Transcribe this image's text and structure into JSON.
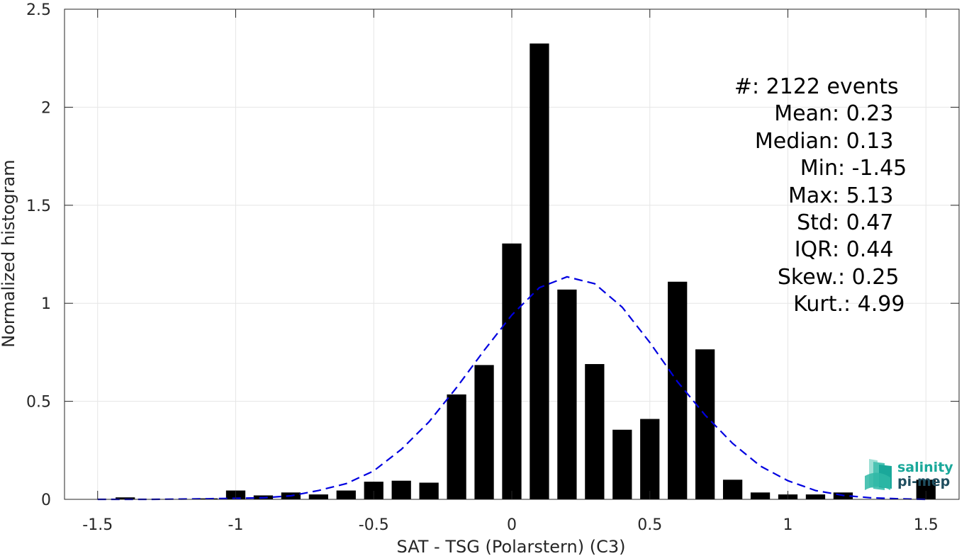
{
  "chart_data": {
    "type": "bar",
    "xlabel": "SAT - TSG (Polarstern) (C3)",
    "ylabel": "Normalized histogram",
    "xlim": [
      -1.62,
      1.62
    ],
    "ylim": [
      0,
      2.5
    ],
    "grid": true,
    "x_ticks": [
      -1.5,
      -1,
      -0.5,
      0,
      0.5,
      1,
      1.5
    ],
    "x_tick_labels": [
      "-1.5",
      "-1",
      "-0.5",
      "0",
      "0.5",
      "1",
      "1.5"
    ],
    "y_ticks": [
      0,
      0.5,
      1,
      1.5,
      2,
      2.5
    ],
    "y_tick_labels": [
      "0",
      "0.5",
      "1",
      "1.5",
      "2",
      "2.5"
    ],
    "bar_width": 0.07,
    "bar_color": "#000000",
    "bins": {
      "x": [
        -1.4,
        -1.3,
        -1.2,
        -1.1,
        -1.0,
        -0.9,
        -0.8,
        -0.7,
        -0.6,
        -0.5,
        -0.4,
        -0.3,
        -0.2,
        -0.1,
        0.0,
        0.1,
        0.2,
        0.3,
        0.4,
        0.5,
        0.6,
        0.7,
        0.8,
        0.9,
        1.0,
        1.1,
        1.2,
        1.3,
        1.4,
        1.5
      ],
      "values": [
        0.01,
        0.0,
        0.0,
        0.005,
        0.045,
        0.02,
        0.035,
        0.025,
        0.045,
        0.09,
        0.095,
        0.085,
        0.535,
        0.685,
        1.305,
        2.325,
        1.07,
        0.69,
        0.355,
        0.41,
        1.11,
        0.765,
        0.1,
        0.035,
        0.025,
        0.025,
        0.035,
        0.0,
        0.0,
        0.1
      ]
    },
    "fit_curve": {
      "type": "dashed-line",
      "color": "#0000e0",
      "x": [
        -1.5,
        -1.3,
        -1.1,
        -0.9,
        -0.8,
        -0.7,
        -0.6,
        -0.5,
        -0.4,
        -0.3,
        -0.2,
        -0.1,
        0.0,
        0.1,
        0.2,
        0.3,
        0.4,
        0.5,
        0.6,
        0.7,
        0.8,
        0.9,
        1.0,
        1.1,
        1.2,
        1.3,
        1.4,
        1.5
      ],
      "y": [
        0.0,
        0.0,
        0.003,
        0.008,
        0.018,
        0.045,
        0.08,
        0.145,
        0.255,
        0.395,
        0.57,
        0.76,
        0.94,
        1.08,
        1.135,
        1.1,
        0.98,
        0.8,
        0.6,
        0.43,
        0.285,
        0.17,
        0.095,
        0.045,
        0.02,
        0.008,
        0.003,
        0.0
      ]
    },
    "annotations": {
      "stats": [
        {
          "label": "#  ",
          "value": ": 2122 events"
        },
        {
          "label": "Mean ",
          "value": ": 0.23"
        },
        {
          "label": "Median ",
          "value": ": 0.13"
        },
        {
          "label": "Min ",
          "value": ": -1.45"
        },
        {
          "label": "Max ",
          "value": ": 5.13"
        },
        {
          "label": "Std ",
          "value": ": 0.47"
        },
        {
          "label": "IQR ",
          "value": ": 0.44"
        },
        {
          "label": "Skew. ",
          "value": ": 0.25"
        },
        {
          "label": "Kurt. ",
          "value": ": 4.99"
        }
      ]
    }
  },
  "logo": {
    "line1": "salinity",
    "line2": "pi-mep",
    "color_primary": "#1aa89a",
    "color_dark": "#1f4e5f"
  }
}
